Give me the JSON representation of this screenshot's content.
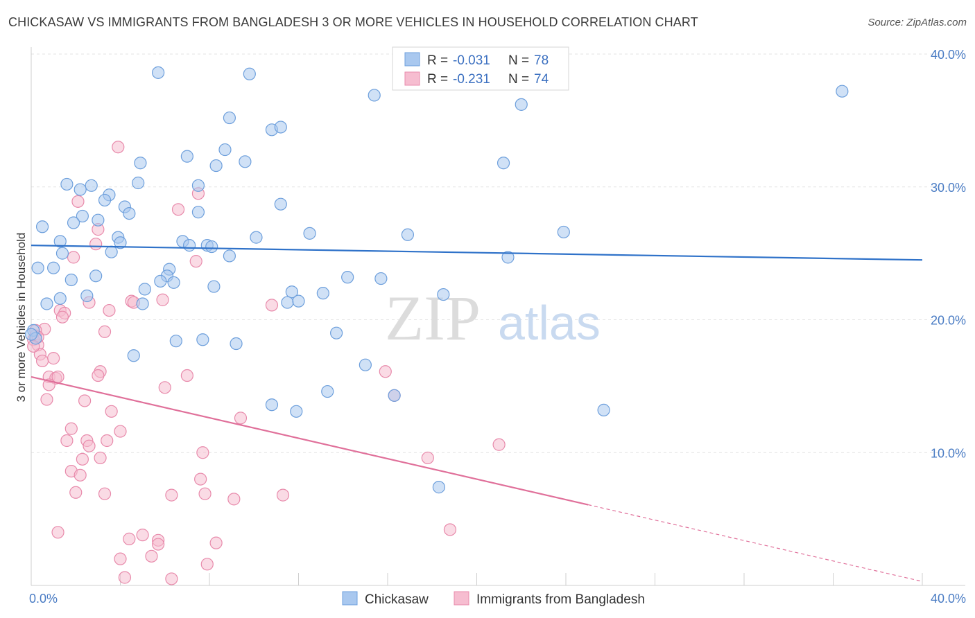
{
  "title": "CHICKASAW VS IMMIGRANTS FROM BANGLADESH 3 OR MORE VEHICLES IN HOUSEHOLD CORRELATION CHART",
  "source": "Source: ZipAtlas.com",
  "watermark": {
    "zip": "ZIP",
    "atlas": "atlas"
  },
  "colors": {
    "chickasaw_fill": "#a9c8ef",
    "chickasaw_stroke": "#6d9fdc",
    "chickasaw_line": "#2f72c9",
    "bangladesh_fill": "#f6bdd0",
    "bangladesh_stroke": "#e88aab",
    "bangladesh_line": "#e0709a",
    "tick_label": "#4a7cc4"
  },
  "legend": {
    "rows": [
      {
        "r_label": "R = ",
        "r_value": "-0.031",
        "n_label": "N = ",
        "n_value": "78"
      },
      {
        "r_label": "R = ",
        "r_value": "-0.231",
        "n_label": "N = ",
        "n_value": "74"
      }
    ]
  },
  "chart_data": {
    "type": "scatter",
    "title": "CHICKASAW VS IMMIGRANTS FROM BANGLADESH 3 OR MORE VEHICLES IN HOUSEHOLD CORRELATION CHART",
    "xlabel": "",
    "ylabel": "3 or more Vehicles in Household",
    "x_tick_labels": [
      "0.0%",
      "40.0%"
    ],
    "y_tick_labels": [
      "10.0%",
      "20.0%",
      "30.0%",
      "40.0%"
    ],
    "y_ticks": [
      10,
      20,
      30,
      40
    ],
    "xlim": [
      0,
      40
    ],
    "ylim": [
      0,
      40
    ],
    "grid": true,
    "legend_position": "top-center",
    "series": [
      {
        "name": "Chickasaw",
        "points": [
          [
            5.7,
            38.6
          ],
          [
            9.8,
            38.5
          ],
          [
            15.4,
            36.9
          ],
          [
            22.0,
            36.2
          ],
          [
            36.4,
            37.2
          ],
          [
            10.8,
            34.3
          ],
          [
            11.2,
            34.5
          ],
          [
            8.9,
            35.2
          ],
          [
            8.7,
            32.8
          ],
          [
            9.6,
            31.9
          ],
          [
            7.0,
            32.3
          ],
          [
            4.9,
            31.8
          ],
          [
            8.3,
            31.6
          ],
          [
            21.2,
            31.8
          ],
          [
            1.6,
            30.2
          ],
          [
            2.2,
            29.8
          ],
          [
            2.7,
            30.1
          ],
          [
            3.5,
            29.4
          ],
          [
            4.8,
            30.3
          ],
          [
            7.5,
            30.1
          ],
          [
            3.3,
            29.0
          ],
          [
            4.2,
            28.5
          ],
          [
            4.4,
            28.0
          ],
          [
            7.5,
            28.1
          ],
          [
            11.2,
            28.7
          ],
          [
            2.3,
            27.8
          ],
          [
            1.9,
            27.3
          ],
          [
            3.0,
            27.5
          ],
          [
            0.5,
            27.0
          ],
          [
            6.8,
            25.9
          ],
          [
            10.1,
            26.2
          ],
          [
            12.5,
            26.5
          ],
          [
            16.9,
            26.4
          ],
          [
            23.9,
            26.6
          ],
          [
            1.3,
            25.9
          ],
          [
            3.9,
            26.2
          ],
          [
            4.0,
            25.8
          ],
          [
            7.1,
            25.6
          ],
          [
            7.9,
            25.6
          ],
          [
            8.1,
            25.5
          ],
          [
            1.4,
            25.0
          ],
          [
            3.6,
            25.1
          ],
          [
            8.9,
            24.8
          ],
          [
            21.4,
            24.7
          ],
          [
            0.3,
            23.9
          ],
          [
            1.0,
            23.9
          ],
          [
            6.2,
            23.8
          ],
          [
            1.8,
            23.0
          ],
          [
            2.9,
            23.3
          ],
          [
            6.1,
            23.3
          ],
          [
            5.8,
            22.9
          ],
          [
            6.4,
            22.8
          ],
          [
            14.2,
            23.2
          ],
          [
            15.7,
            23.1
          ],
          [
            5.1,
            22.3
          ],
          [
            8.2,
            22.5
          ],
          [
            11.7,
            22.1
          ],
          [
            13.1,
            22.0
          ],
          [
            1.3,
            21.6
          ],
          [
            2.5,
            21.8
          ],
          [
            0.7,
            21.2
          ],
          [
            5.0,
            21.2
          ],
          [
            11.5,
            21.3
          ],
          [
            12.0,
            21.4
          ],
          [
            18.5,
            21.9
          ],
          [
            0.1,
            19.2
          ],
          [
            0.2,
            18.6
          ],
          [
            0.0,
            18.9
          ],
          [
            7.7,
            18.5
          ],
          [
            6.5,
            18.4
          ],
          [
            9.2,
            18.2
          ],
          [
            13.7,
            19.0
          ],
          [
            4.6,
            17.3
          ],
          [
            15.0,
            16.6
          ],
          [
            11.9,
            13.1
          ],
          [
            10.8,
            13.6
          ],
          [
            13.3,
            14.6
          ],
          [
            16.3,
            14.3
          ],
          [
            25.7,
            13.2
          ],
          [
            18.3,
            7.4
          ]
        ],
        "trend": {
          "x": [
            0,
            40
          ],
          "y": [
            25.6,
            24.5
          ],
          "solid_until": 40
        }
      },
      {
        "name": "Immigrants from Bangladesh",
        "points": [
          [
            3.9,
            33.0
          ],
          [
            7.5,
            29.5
          ],
          [
            6.6,
            28.3
          ],
          [
            2.1,
            28.9
          ],
          [
            3.0,
            26.8
          ],
          [
            2.9,
            25.7
          ],
          [
            1.9,
            24.7
          ],
          [
            7.4,
            24.4
          ],
          [
            2.6,
            21.3
          ],
          [
            4.5,
            21.4
          ],
          [
            4.6,
            21.3
          ],
          [
            5.9,
            21.5
          ],
          [
            10.8,
            21.1
          ],
          [
            1.3,
            20.7
          ],
          [
            1.5,
            20.5
          ],
          [
            1.4,
            20.2
          ],
          [
            3.5,
            20.7
          ],
          [
            0.6,
            19.3
          ],
          [
            3.3,
            19.1
          ],
          [
            0.2,
            18.8
          ],
          [
            0.1,
            18.5
          ],
          [
            0.3,
            18.1
          ],
          [
            0.4,
            17.4
          ],
          [
            1.0,
            17.1
          ],
          [
            0.5,
            16.9
          ],
          [
            3.1,
            16.1
          ],
          [
            3.0,
            15.8
          ],
          [
            7.0,
            15.8
          ],
          [
            15.9,
            16.1
          ],
          [
            0.8,
            15.7
          ],
          [
            1.1,
            15.6
          ],
          [
            1.2,
            15.7
          ],
          [
            0.8,
            15.1
          ],
          [
            6.0,
            14.9
          ],
          [
            16.3,
            14.3
          ],
          [
            0.7,
            14.0
          ],
          [
            2.4,
            13.9
          ],
          [
            3.6,
            13.1
          ],
          [
            9.4,
            12.6
          ],
          [
            1.8,
            11.8
          ],
          [
            4.0,
            11.6
          ],
          [
            1.6,
            10.9
          ],
          [
            2.5,
            10.9
          ],
          [
            3.4,
            10.9
          ],
          [
            2.6,
            10.5
          ],
          [
            7.7,
            10.0
          ],
          [
            21.0,
            10.6
          ],
          [
            2.3,
            9.5
          ],
          [
            3.1,
            9.6
          ],
          [
            17.8,
            9.6
          ],
          [
            1.8,
            8.6
          ],
          [
            2.2,
            8.3
          ],
          [
            7.6,
            8.0
          ],
          [
            2.0,
            7.0
          ],
          [
            3.3,
            6.9
          ],
          [
            6.3,
            6.8
          ],
          [
            7.8,
            6.9
          ],
          [
            9.1,
            6.5
          ],
          [
            11.3,
            6.8
          ],
          [
            1.2,
            4.0
          ],
          [
            4.4,
            3.5
          ],
          [
            5.0,
            3.8
          ],
          [
            5.7,
            3.4
          ],
          [
            5.7,
            3.1
          ],
          [
            8.3,
            3.2
          ],
          [
            18.8,
            4.2
          ],
          [
            4.0,
            2.0
          ],
          [
            5.4,
            2.2
          ],
          [
            7.9,
            1.6
          ],
          [
            4.2,
            0.6
          ],
          [
            6.3,
            0.5
          ],
          [
            0.2,
            19.2
          ],
          [
            0.3,
            18.7
          ],
          [
            0.1,
            18.0
          ]
        ],
        "trend": {
          "x": [
            0,
            40
          ],
          "y": [
            15.7,
            0.3
          ],
          "solid_until": 25.0
        }
      }
    ]
  },
  "bottom_legend": [
    {
      "label": "Chickasaw"
    },
    {
      "label": "Immigrants from Bangladesh"
    }
  ]
}
